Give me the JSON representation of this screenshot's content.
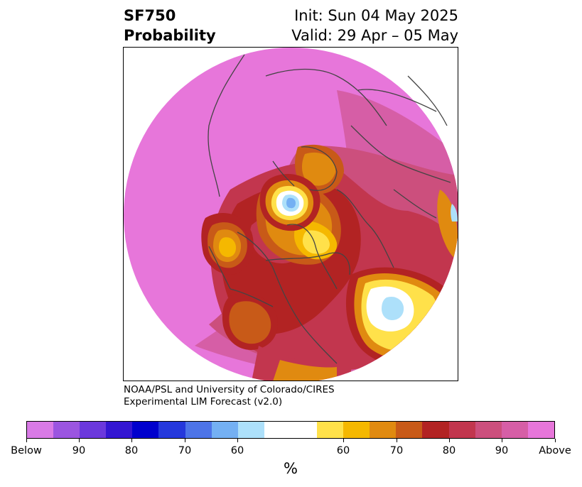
{
  "title": {
    "left_line1": "SF750",
    "left_line2": "Probability",
    "right_line1": "Init: Sun 04 May 2025",
    "right_line2": "Valid: 29 Apr – 05 May"
  },
  "credit": {
    "line1": "NOAA/PSL and University of Colorado/CIRES",
    "line2": "Experimental LIM Forecast (v2.0)"
  },
  "colorbar": {
    "unit": "%",
    "colors": [
      "#d97ae6",
      "#9b55e0",
      "#6b38dc",
      "#3416d2",
      "#0000cd",
      "#2538dc",
      "#4d74e8",
      "#74b0f3",
      "#ade0fa",
      "#ffffff",
      "#ffe14a",
      "#f5b800",
      "#e08a10",
      "#c85a18",
      "#b22323",
      "#c2364e",
      "#cc4f7d",
      "#d65ea6",
      "#e776da"
    ],
    "ticks": [
      "Below",
      "90",
      "80",
      "70",
      "60",
      "60",
      "70",
      "80",
      "90",
      "Above"
    ]
  },
  "map": {
    "colors": {
      "above_max": "#e776da",
      "above_90": "#d65ea6",
      "above_85": "#cc4f7d",
      "above_80": "#c2364e",
      "above_75": "#b22323",
      "above_70": "#c85a18",
      "above_65": "#e08a10",
      "above_60": "#f5b800",
      "above_55": "#ffe14a",
      "neutral": "#ffffff",
      "below_55": "#ade0fa",
      "below_60": "#74b0f3",
      "coastline": "#444444"
    }
  }
}
